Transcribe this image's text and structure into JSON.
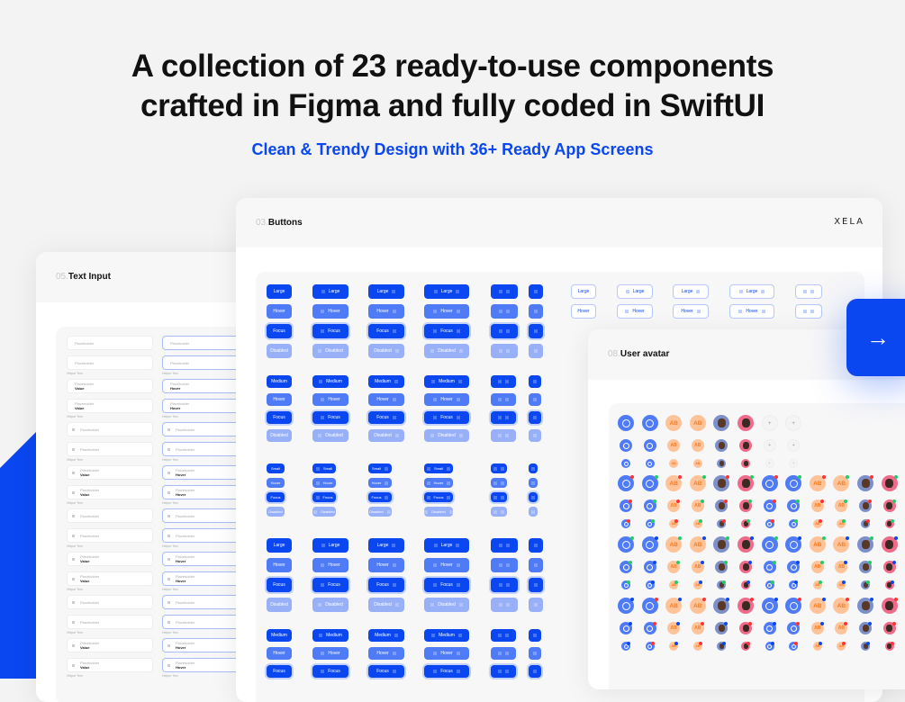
{
  "hero": {
    "title_line1": "A collection of 23 ready-to-use components",
    "title_line2": "crafted in Figma and fully coded in SwiftUI",
    "subtitle": "Clean & Trendy Design with 36+ Ready App Screens"
  },
  "colors": {
    "accent": "#0a47f0",
    "hover": "#4f7bf7",
    "disabled": "#98b0f8",
    "avatar_orange": "#ffc39a"
  },
  "text_input_card": {
    "number": "05.",
    "title": "Text Input",
    "placeholder": "Placeholder",
    "value": "Value",
    "hover": "Hover",
    "helper": "Helper Text"
  },
  "buttons_card": {
    "number": "03.",
    "title": "Buttons",
    "logo": "XELA",
    "groups": [
      {
        "size": "Large",
        "states": [
          "Large",
          "Hover",
          "Focus",
          "Disabled"
        ]
      },
      {
        "size": "Medium",
        "states": [
          "Medium",
          "Hover",
          "Focus",
          "Disabled"
        ]
      },
      {
        "size": "Small",
        "states": [
          "Small",
          "Hover",
          "Focus",
          "Disabled"
        ]
      },
      {
        "size": "Large",
        "states": [
          "Large",
          "Hover",
          "Focus",
          "Disabled"
        ]
      },
      {
        "size": "Medium",
        "states": [
          "Medium",
          "Hover",
          "Focus"
        ]
      }
    ],
    "column_types": [
      "text",
      "icon-text",
      "text-icon",
      "icon-text-icon",
      "icon-icon",
      "icon"
    ]
  },
  "avatar_card": {
    "number": "08.",
    "title": "User avatar",
    "initials": "AB",
    "add_symbol": "+"
  },
  "next_button": {
    "icon": "arrow-right-icon",
    "symbol": "→"
  }
}
